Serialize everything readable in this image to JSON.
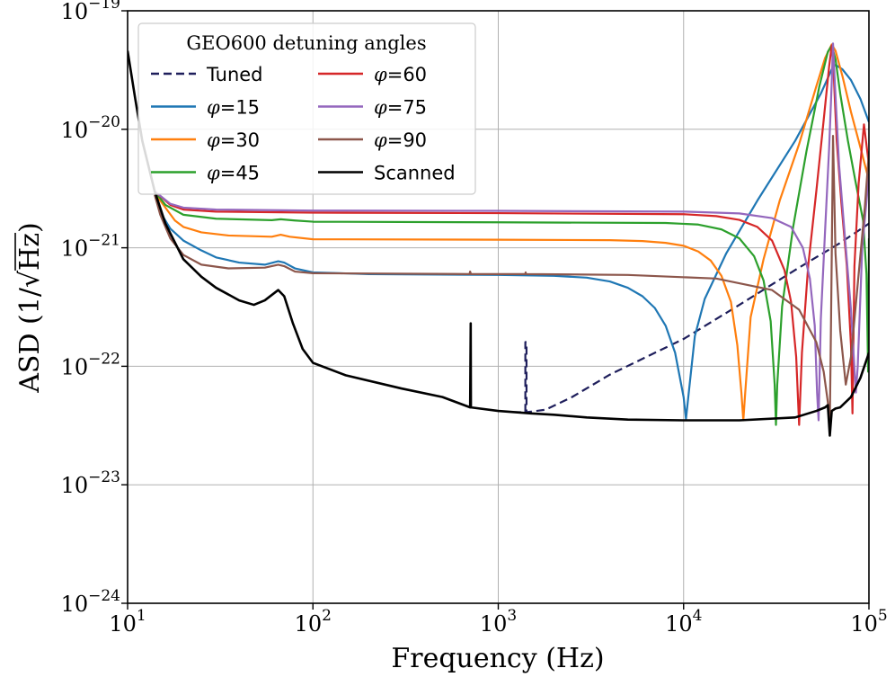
{
  "chart_data": {
    "type": "line",
    "xlabel": "Frequency (Hz)",
    "ylabel_prefix": "ASD (1/√",
    "ylabel_radicand": "Hz",
    "ylabel_suffix": ")",
    "x_scale": "log",
    "y_scale": "log",
    "xlim": [
      10,
      100000
    ],
    "ylim": [
      1e-24,
      1e-19
    ],
    "grid": true,
    "x_ticks": [
      {
        "value": 10,
        "base": "10",
        "exp": "1"
      },
      {
        "value": 100,
        "base": "10",
        "exp": "2"
      },
      {
        "value": 1000,
        "base": "10",
        "exp": "3"
      },
      {
        "value": 10000,
        "base": "10",
        "exp": "4"
      },
      {
        "value": 100000,
        "base": "10",
        "exp": "5"
      }
    ],
    "y_ticks": [
      {
        "value": 1e-19,
        "base": "10",
        "exp": "−19"
      },
      {
        "value": 1e-20,
        "base": "10",
        "exp": "−20"
      },
      {
        "value": 1e-21,
        "base": "10",
        "exp": "−21"
      },
      {
        "value": 1e-22,
        "base": "10",
        "exp": "−22"
      },
      {
        "value": 1e-23,
        "base": "10",
        "exp": "−23"
      },
      {
        "value": 1e-24,
        "base": "10",
        "exp": "−24"
      }
    ],
    "legend": {
      "title": "GEO600 detuning angles",
      "placement": "top-left",
      "columns": 2
    },
    "series": [
      {
        "name": "Tuned",
        "symbol": "",
        "suffix": "Tuned",
        "color": "#1f1f5c",
        "dash": true,
        "points": [
          [
            1200,
            4.1e-23
          ],
          [
            1400,
            4.1e-23
          ],
          [
            1400,
            1.6e-22
          ],
          [
            1420,
            1.6e-22
          ],
          [
            1420,
            4.1e-23
          ],
          [
            1800,
            4.3e-23
          ],
          [
            2500,
            5.5e-23
          ],
          [
            4000,
            8.5e-23
          ],
          [
            7000,
            1.3e-22
          ],
          [
            10000,
            1.7e-22
          ],
          [
            20000,
            3.3e-22
          ],
          [
            40000,
            6.5e-22
          ],
          [
            70000,
            1.1e-21
          ],
          [
            100000,
            1.6e-21
          ]
        ]
      },
      {
        "name": "φ=15",
        "symbol": "φ",
        "suffix": "=15",
        "color": "#1f77b4",
        "dash": false,
        "points": [
          [
            14,
            3e-21
          ],
          [
            15,
            2e-21
          ],
          [
            17,
            1.45e-21
          ],
          [
            20,
            1.15e-21
          ],
          [
            25,
            9.5e-22
          ],
          [
            30,
            8.3e-22
          ],
          [
            40,
            7.5e-22
          ],
          [
            55,
            7.2e-22
          ],
          [
            65,
            7.7e-22
          ],
          [
            70,
            7.5e-22
          ],
          [
            80,
            6.7e-22
          ],
          [
            100,
            6.2e-22
          ],
          [
            200,
            6e-22
          ],
          [
            1000,
            5.9e-22
          ],
          [
            2000,
            5.8e-22
          ],
          [
            3000,
            5.6e-22
          ],
          [
            4000,
            5.2e-22
          ],
          [
            5000,
            4.6e-22
          ],
          [
            6000,
            3.9e-22
          ],
          [
            7000,
            3.1e-22
          ],
          [
            8000,
            2.2e-22
          ],
          [
            9000,
            1.3e-22
          ],
          [
            10000,
            5.5e-23
          ],
          [
            10300,
            3.6e-23
          ],
          [
            10600,
            5.5e-23
          ],
          [
            11500,
            1.8e-22
          ],
          [
            13000,
            3.7e-22
          ],
          [
            17000,
            9e-22
          ],
          [
            25000,
            2.5e-21
          ],
          [
            40000,
            8e-21
          ],
          [
            55000,
            2e-20
          ],
          [
            63000,
            3.2e-20
          ],
          [
            66000,
            3.5e-20
          ],
          [
            72000,
            3.2e-20
          ],
          [
            80000,
            2.6e-20
          ],
          [
            90000,
            1.8e-20
          ],
          [
            100000,
            1.15e-20
          ]
        ]
      },
      {
        "name": "φ=30",
        "symbol": "φ",
        "suffix": "=30",
        "color": "#ff7f0e",
        "dash": false,
        "points": [
          [
            14,
            3e-21
          ],
          [
            15,
            2.5e-21
          ],
          [
            18,
            1.7e-21
          ],
          [
            20,
            1.5e-21
          ],
          [
            25,
            1.35e-21
          ],
          [
            35,
            1.27e-21
          ],
          [
            60,
            1.24e-21
          ],
          [
            67,
            1.29e-21
          ],
          [
            75,
            1.24e-21
          ],
          [
            100,
            1.18e-21
          ],
          [
            1000,
            1.17e-21
          ],
          [
            4000,
            1.16e-21
          ],
          [
            6000,
            1.14e-21
          ],
          [
            8000,
            1.1e-21
          ],
          [
            10000,
            1.04e-21
          ],
          [
            12000,
            9.3e-22
          ],
          [
            14000,
            7.8e-22
          ],
          [
            16000,
            5.8e-22
          ],
          [
            18000,
            3.5e-22
          ],
          [
            19500,
            1.5e-22
          ],
          [
            20500,
            6e-23
          ],
          [
            21000,
            3.5e-23
          ],
          [
            21500,
            6e-23
          ],
          [
            23000,
            2.6e-22
          ],
          [
            27000,
            8e-22
          ],
          [
            33000,
            2.5e-21
          ],
          [
            42000,
            7.5e-21
          ],
          [
            52000,
            2.3e-20
          ],
          [
            58000,
            4e-20
          ],
          [
            63000,
            5.2e-20
          ],
          [
            66000,
            4.6e-20
          ],
          [
            72000,
            2.8e-20
          ],
          [
            80000,
            1.4e-20
          ],
          [
            90000,
            7e-21
          ],
          [
            100000,
            3.7e-21
          ]
        ]
      },
      {
        "name": "φ=45",
        "symbol": "φ",
        "suffix": "=45",
        "color": "#2ca02c",
        "dash": false,
        "points": [
          [
            14,
            3e-21
          ],
          [
            16,
            2.3e-21
          ],
          [
            20,
            1.9e-21
          ],
          [
            30,
            1.76e-21
          ],
          [
            60,
            1.71e-21
          ],
          [
            67,
            1.74e-21
          ],
          [
            80,
            1.7e-21
          ],
          [
            100,
            1.66e-21
          ],
          [
            1000,
            1.64e-21
          ],
          [
            8000,
            1.62e-21
          ],
          [
            12000,
            1.57e-21
          ],
          [
            16000,
            1.43e-21
          ],
          [
            20000,
            1.2e-21
          ],
          [
            24000,
            8.5e-22
          ],
          [
            27000,
            5.3e-22
          ],
          [
            29500,
            2.4e-22
          ],
          [
            31000,
            7e-23
          ],
          [
            31500,
            3.2e-23
          ],
          [
            32000,
            7e-23
          ],
          [
            34000,
            3.2e-22
          ],
          [
            39000,
            1.5e-21
          ],
          [
            46000,
            6.5e-21
          ],
          [
            54000,
            2.3e-20
          ],
          [
            60000,
            4.5e-20
          ],
          [
            63000,
            5.1e-20
          ],
          [
            66000,
            3.9e-20
          ],
          [
            70000,
            2e-20
          ],
          [
            77000,
            8e-21
          ],
          [
            85000,
            3.5e-21
          ],
          [
            93000,
            1.7e-21
          ],
          [
            97000,
            6e-22
          ],
          [
            99000,
            9e-23
          ],
          [
            100000,
            1.2e-21
          ]
        ]
      },
      {
        "name": "φ=60",
        "symbol": "φ",
        "suffix": "=60",
        "color": "#d62728",
        "dash": false,
        "points": [
          [
            14,
            3e-21
          ],
          [
            17,
            2.3e-21
          ],
          [
            20,
            2.1e-21
          ],
          [
            30,
            2.02e-21
          ],
          [
            100,
            1.98e-21
          ],
          [
            1000,
            1.96e-21
          ],
          [
            10000,
            1.92e-21
          ],
          [
            15000,
            1.85e-21
          ],
          [
            20000,
            1.72e-21
          ],
          [
            25000,
            1.5e-21
          ],
          [
            30000,
            1.15e-21
          ],
          [
            35000,
            6.5e-22
          ],
          [
            38000,
            3.5e-22
          ],
          [
            40500,
            1.2e-22
          ],
          [
            42000,
            3.2e-23
          ],
          [
            43500,
            1.3e-22
          ],
          [
            47000,
            7e-22
          ],
          [
            52000,
            3e-21
          ],
          [
            57000,
            1.2e-20
          ],
          [
            61000,
            3.4e-20
          ],
          [
            63000,
            5.1e-20
          ],
          [
            64500,
            3e-20
          ],
          [
            67000,
            8e-21
          ],
          [
            71000,
            2.4e-21
          ],
          [
            76000,
            7e-22
          ],
          [
            80000,
            1.5e-22
          ],
          [
            81500,
            4e-23
          ],
          [
            83500,
            7e-22
          ],
          [
            88000,
            3.5e-21
          ],
          [
            94000,
            1.1e-20
          ],
          [
            100000,
            5e-21
          ]
        ]
      },
      {
        "name": "φ=75",
        "symbol": "φ",
        "suffix": "=75",
        "color": "#9467bd",
        "dash": false,
        "points": [
          [
            14,
            3e-21
          ],
          [
            17,
            2.35e-21
          ],
          [
            20,
            2.18e-21
          ],
          [
            30,
            2.1e-21
          ],
          [
            100,
            2.06e-21
          ],
          [
            1000,
            2.05e-21
          ],
          [
            10000,
            2.02e-21
          ],
          [
            20000,
            1.95e-21
          ],
          [
            30000,
            1.78e-21
          ],
          [
            38000,
            1.5e-21
          ],
          [
            44000,
            1e-21
          ],
          [
            48000,
            5.5e-22
          ],
          [
            51000,
            2.2e-22
          ],
          [
            52500,
            6e-23
          ],
          [
            53500,
            3.5e-23
          ],
          [
            55000,
            2.5e-22
          ],
          [
            58000,
            1.4e-21
          ],
          [
            61000,
            7e-21
          ],
          [
            63000,
            2.5e-20
          ],
          [
            64000,
            5.3e-20
          ],
          [
            65500,
            2.4e-20
          ],
          [
            69000,
            5e-21
          ],
          [
            74000,
            1.3e-21
          ],
          [
            80000,
            3e-22
          ],
          [
            85000,
            6e-23
          ],
          [
            87000,
            1e-22
          ],
          [
            92000,
            1e-21
          ],
          [
            100000,
            4.2e-21
          ]
        ]
      },
      {
        "name": "φ=90",
        "symbol": "φ",
        "suffix": "=90",
        "color": "#8c564b",
        "dash": false,
        "points": [
          [
            14,
            2.8e-21
          ],
          [
            15,
            1.9e-21
          ],
          [
            17,
            1.2e-21
          ],
          [
            20,
            8.7e-22
          ],
          [
            25,
            7.2e-22
          ],
          [
            35,
            6.7e-22
          ],
          [
            55,
            6.8e-22
          ],
          [
            65,
            7.2e-22
          ],
          [
            70,
            7e-22
          ],
          [
            80,
            6.3e-22
          ],
          [
            100,
            6.1e-22
          ],
          [
            700,
            6e-22
          ],
          [
            705,
            6.3e-22
          ],
          [
            712,
            6e-22
          ],
          [
            1000,
            6e-22
          ],
          [
            1400,
            6e-22
          ],
          [
            1405,
            6.2e-22
          ],
          [
            1412,
            6e-22
          ],
          [
            5000,
            5.9e-22
          ],
          [
            15000,
            5.5e-22
          ],
          [
            30000,
            4.4e-22
          ],
          [
            42000,
            3e-22
          ],
          [
            52000,
            1.6e-22
          ],
          [
            57000,
            9e-23
          ],
          [
            60000,
            5e-23
          ],
          [
            61500,
            3.3e-23
          ],
          [
            62500,
            2.7e-22
          ],
          [
            64000,
            8.8e-21
          ],
          [
            66000,
            9e-22
          ],
          [
            70000,
            2e-22
          ],
          [
            75000,
            7e-23
          ],
          [
            80000,
            1.2e-22
          ],
          [
            88000,
            6e-22
          ],
          [
            95000,
            2.2e-21
          ],
          [
            100000,
            6.5e-21
          ]
        ]
      },
      {
        "name": "Scanned",
        "symbol": "",
        "suffix": "Scanned",
        "color": "#000000",
        "dash": false,
        "points": [
          [
            10,
            4.6e-20
          ],
          [
            11,
            1.8e-20
          ],
          [
            12,
            8e-21
          ],
          [
            14,
            3e-21
          ],
          [
            16,
            1.6e-21
          ],
          [
            20,
            8e-22
          ],
          [
            25,
            5.7e-22
          ],
          [
            30,
            4.6e-22
          ],
          [
            40,
            3.6e-22
          ],
          [
            48,
            3.3e-22
          ],
          [
            55,
            3.6e-22
          ],
          [
            60,
            4e-22
          ],
          [
            65,
            4.4e-22
          ],
          [
            70,
            3.9e-22
          ],
          [
            78,
            2.3e-22
          ],
          [
            88,
            1.4e-22
          ],
          [
            100,
            1.07e-22
          ],
          [
            150,
            8.4e-23
          ],
          [
            300,
            6.5e-23
          ],
          [
            500,
            5.5e-23
          ],
          [
            705,
            4.5e-23
          ],
          [
            710,
            2.3e-22
          ],
          [
            712,
            4.5e-23
          ],
          [
            1000,
            4.2e-23
          ],
          [
            1500,
            4e-23
          ],
          [
            2000,
            3.9e-23
          ],
          [
            3000,
            3.7e-23
          ],
          [
            5000,
            3.55e-23
          ],
          [
            10000,
            3.5e-23
          ],
          [
            20000,
            3.5e-23
          ],
          [
            40000,
            3.7e-23
          ],
          [
            52000,
            4.2e-23
          ],
          [
            58000,
            4.5e-23
          ],
          [
            60000,
            4.7e-23
          ],
          [
            61500,
            2.6e-23
          ],
          [
            63000,
            4.2e-23
          ],
          [
            66000,
            4.4e-23
          ],
          [
            70000,
            4.5e-23
          ],
          [
            80000,
            5.5e-23
          ],
          [
            90000,
            8e-23
          ],
          [
            100000,
            1.3e-22
          ]
        ]
      }
    ]
  }
}
